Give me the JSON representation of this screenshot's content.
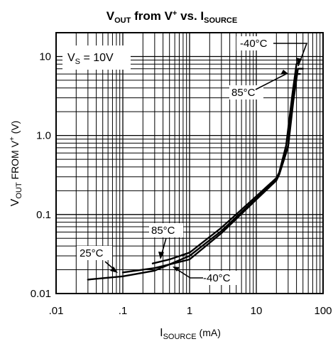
{
  "chart_data": {
    "type": "line",
    "title": {
      "main": "V",
      "main_sub": "OUT",
      "mid": " from V",
      "mid_sup": "+",
      "end": " vs. I",
      "end_sub": "SOURCE"
    },
    "xlabel": {
      "main": "I",
      "sub": "SOURCE",
      "unit": " (mA)"
    },
    "ylabel": {
      "main": "V",
      "sub": "OUT",
      "mid": " FROM V",
      "sup": "+",
      "unit": " (V)"
    },
    "x_scale": "log",
    "y_scale": "log",
    "xlim": [
      0.01,
      100
    ],
    "ylim": [
      0.01,
      20
    ],
    "x_ticks": [
      0.01,
      0.1,
      1,
      10,
      100
    ],
    "x_tick_labels": [
      ".01",
      ".1",
      "1",
      "10",
      "100"
    ],
    "y_ticks": [
      0.01,
      0.1,
      1.0,
      10
    ],
    "y_tick_labels": [
      "0.01",
      "0.1",
      "1.0",
      "10"
    ],
    "grid": true,
    "condition_label": {
      "main": "V",
      "sub": "S",
      "rest": " = 10V"
    },
    "series": [
      {
        "name": "25°C",
        "x": [
          0.03,
          0.1,
          0.3,
          1,
          3,
          10,
          20,
          22,
          30,
          35,
          40,
          45
        ],
        "y": [
          0.015,
          0.0165,
          0.0195,
          0.03,
          0.062,
          0.16,
          0.28,
          0.33,
          0.75,
          3.0,
          6.0,
          6.0
        ]
      },
      {
        "name": "85°C",
        "x": [
          0.28,
          0.5,
          1,
          3,
          10,
          20,
          22,
          28,
          35,
          40,
          43
        ],
        "y": [
          0.024,
          0.027,
          0.033,
          0.068,
          0.17,
          0.29,
          0.34,
          0.75,
          3.5,
          8.0,
          8.5
        ]
      },
      {
        "name": "-40°C",
        "x": [
          0.1,
          0.3,
          1,
          3,
          10,
          20,
          22,
          30,
          36,
          42,
          50
        ],
        "y": [
          0.0185,
          0.021,
          0.027,
          0.058,
          0.155,
          0.27,
          0.32,
          0.72,
          2.8,
          7.0,
          7.0
        ]
      }
    ],
    "annotations": [
      {
        "text": "-40°C",
        "at": [
          38,
          8.0
        ]
      },
      {
        "text": "85°C",
        "at": [
          38,
          7.5
        ]
      },
      {
        "text": "25°C",
        "at": [
          0.1,
          0.0175
        ]
      },
      {
        "text": "85°C",
        "at": [
          0.38,
          0.025
        ]
      },
      {
        "text": "-40°C",
        "at": [
          0.5,
          0.021
        ]
      }
    ]
  }
}
